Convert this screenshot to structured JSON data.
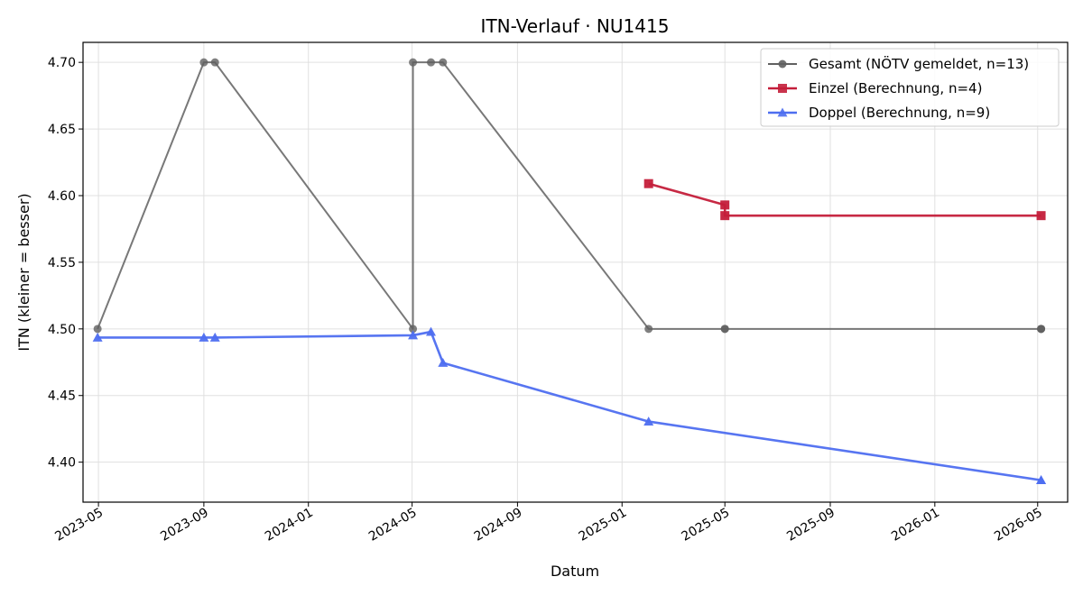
{
  "chart_data": {
    "type": "line",
    "title": "ITN-Verlauf · NU1415",
    "xlabel": "Datum",
    "ylabel": "ITN  (kleiner = besser)",
    "x_axis_type": "date",
    "xlim": [
      "2023-04-13",
      "2026-06-05"
    ],
    "ylim": [
      4.37,
      4.715
    ],
    "grid": true,
    "legend_position": "top-right",
    "x_ticks": [
      "2023-05",
      "2023-09",
      "2024-01",
      "2024-05",
      "2024-09",
      "2025-01",
      "2025-05",
      "2025-09",
      "2026-01",
      "2026-05"
    ],
    "y_ticks": [
      4.4,
      4.45,
      4.5,
      4.55,
      4.6,
      4.65,
      4.7
    ],
    "series": [
      {
        "name": "Gesamt (NÖTV gemeldet, n=13)",
        "color": "#606060",
        "marker": "circle",
        "points": [
          {
            "x": "2023-04-30",
            "y": 4.5
          },
          {
            "x": "2023-09-01",
            "y": 4.7
          },
          {
            "x": "2023-09-14",
            "y": 4.7
          },
          {
            "x": "2024-05-02",
            "y": 4.5
          },
          {
            "x": "2024-05-02",
            "y": 4.7
          },
          {
            "x": "2024-05-23",
            "y": 4.7
          },
          {
            "x": "2024-06-06",
            "y": 4.7
          },
          {
            "x": "2025-02-01",
            "y": 4.5
          },
          {
            "x": "2025-05-01",
            "y": 4.5
          },
          {
            "x": "2025-05-01",
            "y": 4.5
          },
          {
            "x": "2026-05-05",
            "y": 4.5
          },
          {
            "x": "2026-05-05",
            "y": 4.5
          },
          {
            "x": "2026-05-05",
            "y": 4.5
          }
        ]
      },
      {
        "name": "Einzel (Berechnung, n=4)",
        "color": "#c41e3a",
        "marker": "square",
        "points": [
          {
            "x": "2025-02-01",
            "y": 4.609
          },
          {
            "x": "2025-05-01",
            "y": 4.593
          },
          {
            "x": "2025-05-01",
            "y": 4.585
          },
          {
            "x": "2026-05-05",
            "y": 4.585
          }
        ]
      },
      {
        "name": "Doppel (Berechnung, n=9)",
        "color": "#4e6ef0",
        "marker": "triangle",
        "points": [
          {
            "x": "2023-04-30",
            "y": 4.4935
          },
          {
            "x": "2023-09-01",
            "y": 4.4935
          },
          {
            "x": "2023-09-14",
            "y": 4.4935
          },
          {
            "x": "2024-05-02",
            "y": 4.4952
          },
          {
            "x": "2024-05-23",
            "y": 4.4978
          },
          {
            "x": "2024-06-06",
            "y": 4.4745
          },
          {
            "x": "2025-02-01",
            "y": 4.4305
          },
          {
            "x": "2026-05-05",
            "y": 4.3865
          },
          {
            "x": "2026-05-05",
            "y": 4.3865
          }
        ]
      }
    ]
  }
}
